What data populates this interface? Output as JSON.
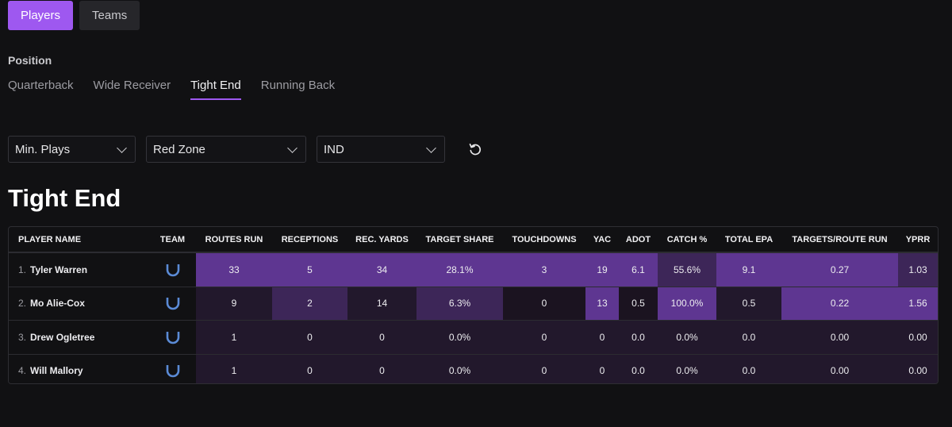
{
  "top_tabs": [
    {
      "label": "Players",
      "active": true
    },
    {
      "label": "Teams",
      "active": false
    }
  ],
  "position": {
    "label": "Position",
    "tabs": [
      {
        "label": "Quarterback",
        "active": false
      },
      {
        "label": "Wide Receiver",
        "active": false
      },
      {
        "label": "Tight End",
        "active": true
      },
      {
        "label": "Running Back",
        "active": false
      }
    ]
  },
  "filters": [
    {
      "value": "Min. Plays"
    },
    {
      "value": "Red Zone"
    },
    {
      "value": "IND"
    }
  ],
  "reset_icon": "refresh-icon",
  "heading": "Tight End",
  "table": {
    "columns": [
      "PLAYER NAME",
      "TEAM",
      "ROUTES RUN",
      "RECEPTIONS",
      "REC. YARDS",
      "TARGET SHARE",
      "TOUCHDOWNS",
      "YAC",
      "ADOT",
      "CATCH %",
      "TOTAL EPA",
      "TARGETS/ROUTE RUN",
      "YPRR"
    ],
    "team_icon": "horseshoe-icon",
    "rows": [
      {
        "rank": "1.",
        "name": "Tyler Warren",
        "cells": [
          "33",
          "5",
          "34",
          "28.1%",
          "3",
          "19",
          "6.1",
          "55.6%",
          "9.1",
          "0.27",
          "1.03"
        ],
        "shades": [
          3,
          3,
          3,
          3,
          3,
          3,
          3,
          2,
          3,
          3,
          2
        ]
      },
      {
        "rank": "2.",
        "name": "Mo Alie-Cox",
        "cells": [
          "9",
          "2",
          "14",
          "6.3%",
          "0",
          "13",
          "0.5",
          "100.0%",
          "0.5",
          "0.22",
          "1.56"
        ],
        "shades": [
          1,
          2,
          1,
          2,
          0,
          3,
          0,
          3,
          1,
          3,
          3
        ]
      },
      {
        "rank": "3.",
        "name": "Drew Ogletree",
        "cells": [
          "1",
          "0",
          "0",
          "0.0%",
          "0",
          "0",
          "0.0",
          "0.0%",
          "0.0",
          "0.00",
          "0.00"
        ],
        "shades": [
          1,
          1,
          1,
          1,
          1,
          1,
          1,
          1,
          1,
          1,
          1
        ]
      },
      {
        "rank": "4.",
        "name": "Will Mallory",
        "cells": [
          "1",
          "0",
          "0",
          "0.0%",
          "0",
          "0",
          "0.0",
          "0.0%",
          "0.0",
          "0.00",
          "0.00"
        ],
        "shades": [
          1,
          1,
          1,
          1,
          1,
          1,
          1,
          1,
          1,
          1,
          1
        ]
      }
    ]
  },
  "colors": {
    "accent": "#9e58f0",
    "heat": [
      "#1b1320",
      "#22182c",
      "#3d2658",
      "#5e3691"
    ],
    "team_icon": "#5b8bd6"
  }
}
